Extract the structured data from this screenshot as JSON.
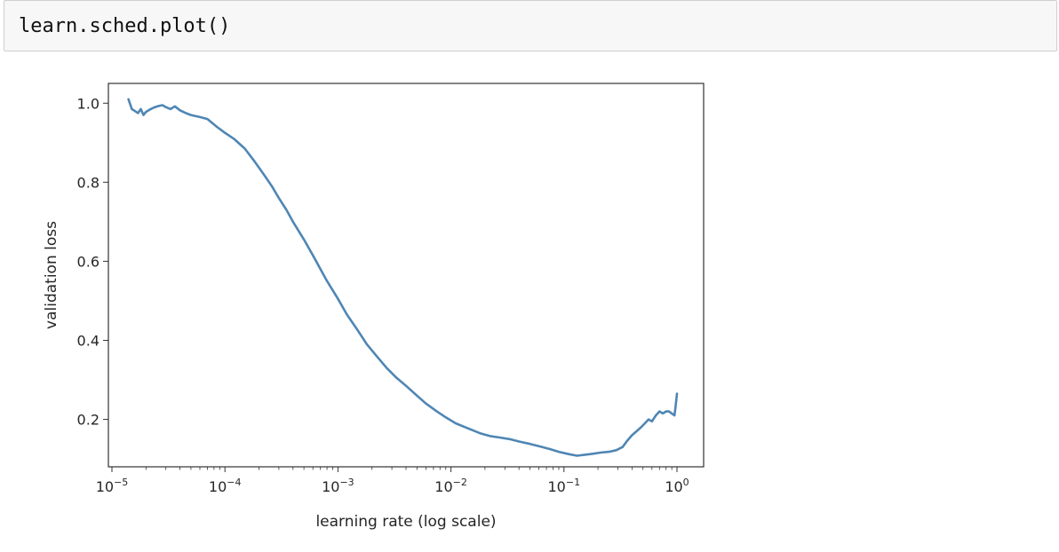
{
  "code_cell": {
    "source": "learn.sched.plot()"
  },
  "chart_data": {
    "type": "line",
    "xscale": "log",
    "xlabel": "learning rate (log scale)",
    "ylabel": "validation loss",
    "xlim": [
      1e-05,
      1.0
    ],
    "ylim": [
      0.08,
      1.05
    ],
    "grid": false,
    "line_color": "#4f86b4",
    "xticks": [
      {
        "value": 1e-05,
        "base": "10",
        "exp": "−5"
      },
      {
        "value": 0.0001,
        "base": "10",
        "exp": "−4"
      },
      {
        "value": 0.001,
        "base": "10",
        "exp": "−3"
      },
      {
        "value": 0.01,
        "base": "10",
        "exp": "−2"
      },
      {
        "value": 0.1,
        "base": "10",
        "exp": "−1"
      },
      {
        "value": 1.0,
        "base": "10",
        "exp": "0"
      }
    ],
    "yticks": [
      {
        "value": 0.2,
        "label": "0.2"
      },
      {
        "value": 0.4,
        "label": "0.4"
      },
      {
        "value": 0.6,
        "label": "0.6"
      },
      {
        "value": 0.8,
        "label": "0.8"
      },
      {
        "value": 1.0,
        "label": "1.0"
      }
    ],
    "series": [
      {
        "x": [
          1.4e-05,
          1.5e-05,
          1.6e-05,
          1.7e-05,
          1.8e-05,
          1.9e-05,
          2e-05,
          2.2e-05,
          2.4e-05,
          2.6e-05,
          2.8e-05,
          3e-05,
          3.3e-05,
          3.6e-05,
          4e-05,
          4.5e-05,
          5e-05,
          6e-05,
          7e-05,
          8.5e-05,
          0.0001,
          0.00012,
          0.00015,
          0.00018,
          0.00022,
          0.00026,
          0.0003,
          0.00035,
          0.0004,
          0.0005,
          0.0006,
          0.0007,
          0.0008,
          0.001,
          0.0012,
          0.0015,
          0.0018,
          0.0022,
          0.0027,
          0.0033,
          0.004,
          0.005,
          0.006,
          0.0075,
          0.009,
          0.011,
          0.014,
          0.018,
          0.022,
          0.027,
          0.033,
          0.04,
          0.05,
          0.06,
          0.075,
          0.09,
          0.11,
          0.13,
          0.15,
          0.18,
          0.21,
          0.25,
          0.29,
          0.33,
          0.36,
          0.4,
          0.44,
          0.48,
          0.52,
          0.56,
          0.6,
          0.65,
          0.7,
          0.75,
          0.8,
          0.85,
          0.9,
          0.95,
          0.97,
          1.0
        ],
        "y": [
          1.01,
          0.985,
          0.98,
          0.975,
          0.985,
          0.97,
          0.978,
          0.985,
          0.99,
          0.993,
          0.995,
          0.99,
          0.985,
          0.992,
          0.982,
          0.975,
          0.97,
          0.965,
          0.96,
          0.94,
          0.925,
          0.91,
          0.885,
          0.855,
          0.82,
          0.79,
          0.76,
          0.73,
          0.7,
          0.655,
          0.615,
          0.58,
          0.55,
          0.505,
          0.465,
          0.425,
          0.39,
          0.36,
          0.33,
          0.305,
          0.285,
          0.26,
          0.24,
          0.22,
          0.205,
          0.19,
          0.178,
          0.165,
          0.158,
          0.154,
          0.15,
          0.144,
          0.138,
          0.132,
          0.125,
          0.118,
          0.112,
          0.108,
          0.11,
          0.113,
          0.116,
          0.118,
          0.122,
          0.13,
          0.145,
          0.16,
          0.17,
          0.18,
          0.19,
          0.2,
          0.195,
          0.21,
          0.22,
          0.215,
          0.22,
          0.22,
          0.215,
          0.21,
          0.23,
          0.265
        ]
      }
    ]
  }
}
